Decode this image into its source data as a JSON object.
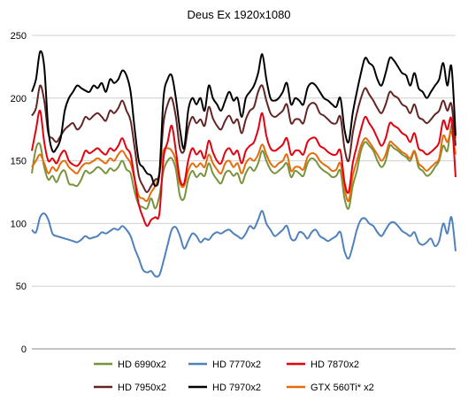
{
  "chart_data": {
    "type": "line",
    "title": "Deus Ex 1920x1080",
    "xlabel": "",
    "ylabel": "",
    "ylim": [
      0,
      250
    ],
    "yticks": [
      0,
      50,
      100,
      150,
      200,
      250
    ],
    "grid": true,
    "legend_position": "bottom",
    "series": [
      {
        "name": "HD 6990x2",
        "color": "#77933C",
        "values": [
          140,
          160,
          163,
          145,
          135,
          138,
          133,
          140,
          142,
          132,
          131,
          130,
          135,
          142,
          140,
          142,
          145,
          143,
          140,
          144,
          142,
          145,
          150,
          143,
          140,
          125,
          115,
          113,
          112,
          120,
          112,
          122,
          142,
          150,
          152,
          143,
          122,
          120,
          135,
          142,
          137,
          140,
          138,
          148,
          140,
          135,
          132,
          140,
          142,
          138,
          140,
          132,
          140,
          145,
          142,
          148,
          158,
          150,
          143,
          140,
          142,
          145,
          148,
          137,
          142,
          140,
          138,
          148,
          152,
          150,
          145,
          142,
          140,
          137,
          138,
          142,
          120,
          112,
          130,
          142,
          158,
          165,
          162,
          158,
          150,
          145,
          150,
          162,
          160,
          158,
          155,
          153,
          150,
          157,
          145,
          142,
          138,
          140,
          145,
          150,
          162,
          158,
          178,
          168
        ]
      },
      {
        "name": "HD 7770x2",
        "color": "#4F81BD",
        "values": [
          95,
          93,
          105,
          108,
          103,
          92,
          90,
          89,
          88,
          87,
          86,
          85,
          87,
          90,
          88,
          89,
          90,
          93,
          92,
          94,
          96,
          95,
          98,
          95,
          90,
          80,
          72,
          63,
          61,
          62,
          58,
          59,
          70,
          83,
          95,
          97,
          90,
          80,
          86,
          92,
          90,
          85,
          88,
          87,
          91,
          93,
          92,
          94,
          95,
          92,
          90,
          88,
          92,
          98,
          96,
          103,
          110,
          100,
          95,
          90,
          92,
          95,
          98,
          88,
          87,
          93,
          92,
          88,
          93,
          95,
          90,
          88,
          86,
          88,
          90,
          93,
          78,
          72,
          82,
          95,
          103,
          104,
          100,
          98,
          93,
          90,
          95,
          100,
          101,
          98,
          94,
          92,
          90,
          93,
          85,
          83,
          85,
          88,
          82,
          86,
          100,
          92,
          105,
          78
        ]
      },
      {
        "name": "HD 7870x2",
        "color": "#E3000F",
        "values": [
          158,
          175,
          190,
          165,
          150,
          152,
          148,
          155,
          158,
          150,
          147,
          146,
          150,
          158,
          156,
          158,
          160,
          157,
          155,
          160,
          158,
          162,
          168,
          160,
          155,
          135,
          115,
          105,
          98,
          103,
          105,
          108,
          152,
          165,
          178,
          158,
          135,
          132,
          150,
          160,
          155,
          158,
          152,
          166,
          157,
          150,
          148,
          157,
          160,
          155,
          158,
          148,
          158,
          162,
          165,
          175,
          188,
          170,
          160,
          158,
          160,
          163,
          168,
          155,
          158,
          158,
          155,
          165,
          168,
          168,
          162,
          160,
          157,
          155,
          155,
          158,
          133,
          125,
          148,
          162,
          175,
          185,
          180,
          175,
          168,
          162,
          168,
          180,
          178,
          176,
          172,
          170,
          165,
          172,
          160,
          158,
          155,
          157,
          160,
          165,
          182,
          175,
          183,
          137
        ]
      },
      {
        "name": "HD 7950x2",
        "color": "#632523",
        "values": [
          186,
          192,
          210,
          198,
          172,
          168,
          165,
          170,
          175,
          178,
          180,
          175,
          178,
          185,
          183,
          186,
          188,
          185,
          182,
          190,
          188,
          192,
          198,
          190,
          182,
          160,
          138,
          130,
          125,
          130,
          135,
          140,
          180,
          195,
          200,
          185,
          160,
          158,
          176,
          185,
          180,
          183,
          178,
          193,
          184,
          178,
          175,
          182,
          186,
          180,
          183,
          172,
          183,
          190,
          193,
          205,
          210,
          198,
          188,
          185,
          187,
          190,
          195,
          180,
          183,
          183,
          180,
          192,
          196,
          195,
          188,
          186,
          183,
          180,
          180,
          185,
          160,
          150,
          172,
          188,
          200,
          208,
          203,
          198,
          192,
          188,
          195,
          205,
          202,
          200,
          195,
          193,
          188,
          195,
          185,
          183,
          180,
          183,
          187,
          190,
          198,
          190,
          195,
          162
        ]
      },
      {
        "name": "HD 7970x2",
        "color": "#000000",
        "values": [
          205,
          215,
          237,
          225,
          175,
          158,
          160,
          168,
          190,
          200,
          205,
          210,
          208,
          206,
          205,
          210,
          208,
          212,
          205,
          215,
          212,
          215,
          222,
          218,
          205,
          175,
          150,
          145,
          140,
          138,
          130,
          140,
          200,
          215,
          218,
          200,
          175,
          160,
          190,
          200,
          195,
          200,
          190,
          210,
          200,
          195,
          190,
          198,
          205,
          198,
          200,
          185,
          200,
          205,
          210,
          220,
          235,
          215,
          200,
          198,
          200,
          205,
          212,
          195,
          200,
          198,
          195,
          208,
          212,
          210,
          205,
          200,
          198,
          195,
          193,
          200,
          175,
          165,
          188,
          205,
          220,
          232,
          228,
          225,
          215,
          210,
          220,
          232,
          230,
          225,
          220,
          218,
          210,
          220,
          208,
          205,
          200,
          205,
          210,
          215,
          228,
          210,
          225,
          170
        ]
      },
      {
        "name": "GTX 560Ti* x2",
        "color": "#E46C0A",
        "values": [
          145,
          150,
          155,
          148,
          140,
          145,
          142,
          148,
          150,
          145,
          142,
          140,
          145,
          148,
          148,
          150,
          152,
          150,
          148,
          152,
          150,
          155,
          158,
          153,
          148,
          135,
          122,
          120,
          118,
          125,
          130,
          140,
          158,
          160,
          158,
          150,
          132,
          130,
          142,
          148,
          145,
          148,
          145,
          155,
          148,
          143,
          140,
          148,
          150,
          145,
          148,
          140,
          148,
          152,
          150,
          155,
          163,
          155,
          148,
          145,
          148,
          150,
          155,
          142,
          145,
          145,
          143,
          153,
          156,
          155,
          150,
          147,
          145,
          142,
          143,
          148,
          128,
          118,
          138,
          150,
          162,
          168,
          165,
          160,
          155,
          150,
          155,
          165,
          163,
          160,
          157,
          155,
          152,
          158,
          148,
          145,
          142,
          145,
          148,
          152,
          170,
          165,
          173,
          155
        ]
      }
    ]
  }
}
